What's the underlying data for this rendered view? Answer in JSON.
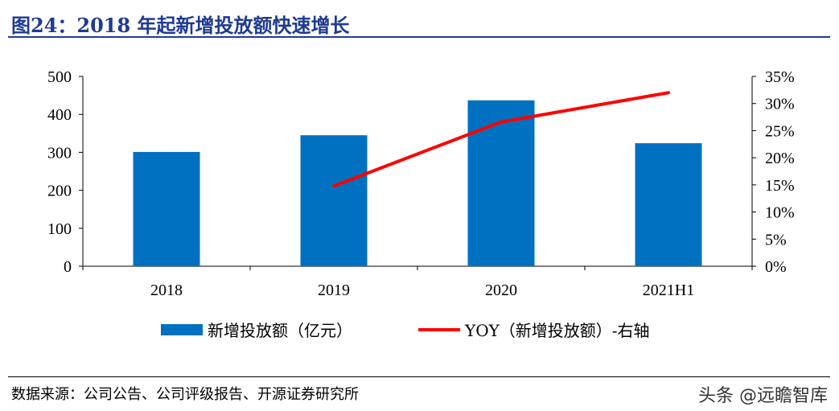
{
  "title": "图24：2018 年起新增投放额快速增长",
  "source": "数据来源：公司公告、公司评级报告、开源证券研究所",
  "watermark": "头条 @远瞻智库",
  "chart_data": {
    "type": "bar+line",
    "categories": [
      "2018",
      "2019",
      "2020",
      "2021H1"
    ],
    "series": [
      {
        "name": "新增投放额（亿元）",
        "type": "bar",
        "axis": "left",
        "color": "#0070c0",
        "values": [
          301,
          345,
          437,
          324
        ]
      },
      {
        "name": "YOY（新增投放额）-右轴",
        "type": "line",
        "axis": "right",
        "color": "#ff0000",
        "values": [
          null,
          14.8,
          26.6,
          32.0
        ]
      }
    ],
    "left_axis": {
      "ylim": [
        0,
        500
      ],
      "ticks": [
        "0",
        "100",
        "200",
        "300",
        "400",
        "500"
      ]
    },
    "right_axis": {
      "ylim": [
        0,
        35
      ],
      "ticks": [
        "0%",
        "5%",
        "10%",
        "15%",
        "20%",
        "25%",
        "30%",
        "35%"
      ]
    },
    "legend": "bottom"
  }
}
